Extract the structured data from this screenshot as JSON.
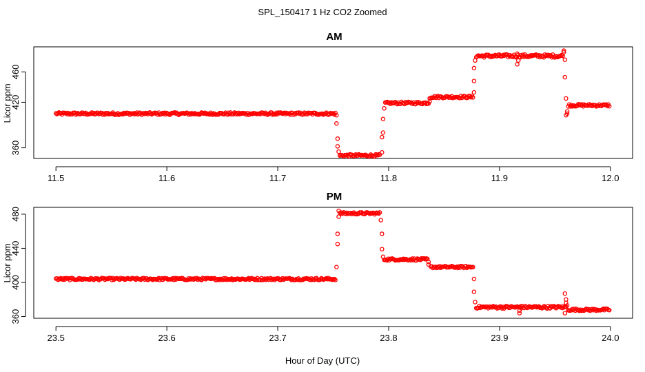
{
  "figure": {
    "title": "SPL_150417  1 Hz CO2 Zoomed",
    "xlabel": "Hour of Day (UTC)"
  },
  "colors": {
    "points": "#ff0000",
    "axes": "#000000"
  },
  "chart_data": [
    {
      "type": "scatter",
      "title": "AM",
      "xlabel": "",
      "ylabel": "Licor ppm",
      "xlim": [
        11.5,
        12.0
      ],
      "ylim": [
        346,
        493
      ],
      "x_ticks": [
        "11.5",
        "11.6",
        "11.7",
        "11.8",
        "11.9",
        "12.0"
      ],
      "y_ticks": [
        "360",
        "420",
        "460"
      ],
      "y_tick_values": [
        360,
        420,
        460
      ],
      "x_tick_values": [
        11.5,
        11.6,
        11.7,
        11.8,
        11.9,
        12.0
      ],
      "marker": "open-circle",
      "segments": [
        {
          "x": [
            11.5,
            11.752
          ],
          "y": [
            405,
            405
          ],
          "noise": 1.5
        },
        {
          "x": [
            11.756,
            11.792
          ],
          "y": [
            350,
            350
          ],
          "noise": 1.5
        },
        {
          "x": [
            11.797,
            11.836
          ],
          "y": [
            419,
            419
          ],
          "noise": 1.5
        },
        {
          "x": [
            11.838,
            11.876
          ],
          "y": [
            427,
            427
          ],
          "noise": 1.5
        },
        {
          "x": [
            11.879,
            11.957
          ],
          "y": [
            481,
            481
          ],
          "noise": 2
        },
        {
          "x": [
            11.962,
            11.999
          ],
          "y": [
            416,
            416
          ],
          "noise": 1.5
        }
      ],
      "extra_points": [
        {
          "x": 11.753,
          "y": 403
        },
        {
          "x": 11.753,
          "y": 392
        },
        {
          "x": 11.754,
          "y": 372
        },
        {
          "x": 11.754,
          "y": 362
        },
        {
          "x": 11.755,
          "y": 355
        },
        {
          "x": 11.794,
          "y": 354
        },
        {
          "x": 11.794,
          "y": 374
        },
        {
          "x": 11.795,
          "y": 380
        },
        {
          "x": 11.795,
          "y": 398
        },
        {
          "x": 11.796,
          "y": 412
        },
        {
          "x": 11.837,
          "y": 421
        },
        {
          "x": 11.837,
          "y": 425
        },
        {
          "x": 11.877,
          "y": 433
        },
        {
          "x": 11.877,
          "y": 448
        },
        {
          "x": 11.877,
          "y": 465
        },
        {
          "x": 11.878,
          "y": 475
        },
        {
          "x": 11.916,
          "y": 470
        },
        {
          "x": 11.917,
          "y": 475
        },
        {
          "x": 11.916,
          "y": 484
        },
        {
          "x": 11.958,
          "y": 488
        },
        {
          "x": 11.958,
          "y": 486
        },
        {
          "x": 11.959,
          "y": 476
        },
        {
          "x": 11.959,
          "y": 453
        },
        {
          "x": 11.96,
          "y": 425
        },
        {
          "x": 11.96,
          "y": 403
        },
        {
          "x": 11.961,
          "y": 405
        },
        {
          "x": 11.961,
          "y": 408
        }
      ]
    },
    {
      "type": "scatter",
      "title": "PM",
      "xlabel": "",
      "ylabel": "Licor ppm",
      "xlim": [
        23.5,
        24.0
      ],
      "ylim": [
        358,
        488
      ],
      "x_ticks": [
        "23.5",
        "23.6",
        "23.7",
        "23.8",
        "23.9",
        "24.0"
      ],
      "y_ticks": [
        "360",
        "400",
        "440",
        "480"
      ],
      "y_tick_values": [
        360,
        400,
        440,
        480
      ],
      "x_tick_values": [
        23.5,
        23.6,
        23.7,
        23.8,
        23.9,
        24.0
      ],
      "marker": "open-circle",
      "segments": [
        {
          "x": [
            23.5,
            23.752
          ],
          "y": [
            404,
            404
          ],
          "noise": 1.2
        },
        {
          "x": [
            23.756,
            23.792
          ],
          "y": [
            481,
            481
          ],
          "noise": 1.2
        },
        {
          "x": [
            23.796,
            23.835
          ],
          "y": [
            427,
            427
          ],
          "noise": 1.2
        },
        {
          "x": [
            23.838,
            23.876
          ],
          "y": [
            418,
            418
          ],
          "noise": 1.2
        },
        {
          "x": [
            23.879,
            23.96
          ],
          "y": [
            371,
            371
          ],
          "noise": 1.5
        },
        {
          "x": [
            23.962,
            23.999
          ],
          "y": [
            368,
            368
          ],
          "noise": 1.2
        }
      ],
      "extra_points": [
        {
          "x": 23.753,
          "y": 418
        },
        {
          "x": 23.754,
          "y": 445
        },
        {
          "x": 23.754,
          "y": 457
        },
        {
          "x": 23.755,
          "y": 477
        },
        {
          "x": 23.755,
          "y": 484
        },
        {
          "x": 23.793,
          "y": 473
        },
        {
          "x": 23.794,
          "y": 457
        },
        {
          "x": 23.794,
          "y": 439
        },
        {
          "x": 23.795,
          "y": 430
        },
        {
          "x": 23.836,
          "y": 424
        },
        {
          "x": 23.836,
          "y": 421
        },
        {
          "x": 23.877,
          "y": 404
        },
        {
          "x": 23.877,
          "y": 389
        },
        {
          "x": 23.878,
          "y": 377
        },
        {
          "x": 23.918,
          "y": 364
        },
        {
          "x": 23.918,
          "y": 367
        },
        {
          "x": 23.919,
          "y": 372
        },
        {
          "x": 23.959,
          "y": 364
        },
        {
          "x": 23.959,
          "y": 387
        },
        {
          "x": 23.96,
          "y": 380
        },
        {
          "x": 23.96,
          "y": 376
        },
        {
          "x": 23.961,
          "y": 373
        }
      ]
    }
  ]
}
